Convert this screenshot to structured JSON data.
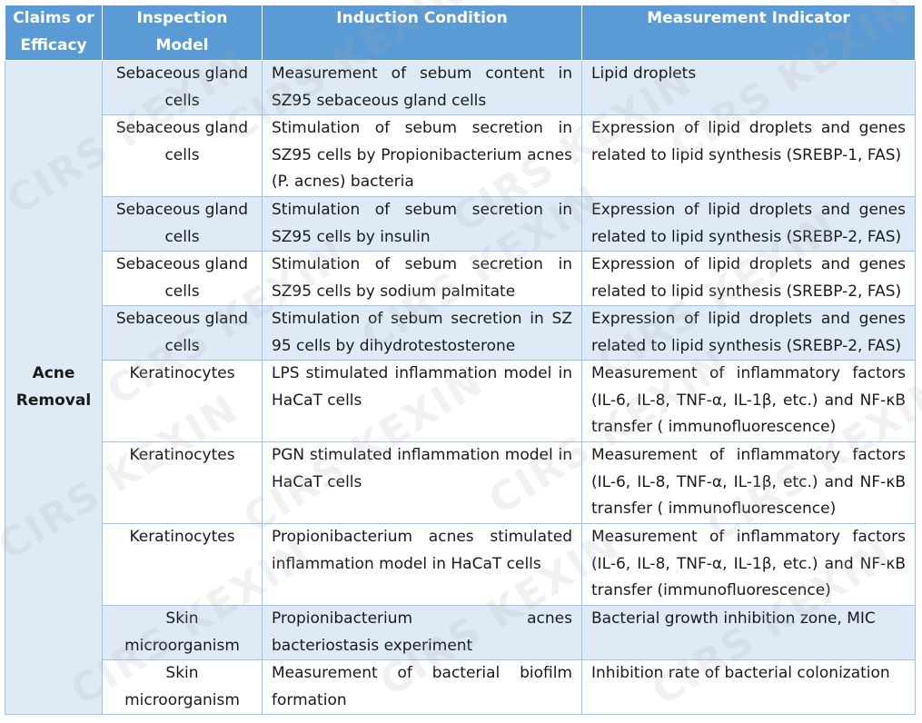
{
  "header": {
    "col1": "Claims or Efficacy",
    "col2": "Inspection Model",
    "col3": "Induction Condition",
    "col4": "Measurement Indicator"
  },
  "claim": "Acne Removal",
  "watermark": "CIRS KEXIN",
  "rows": [
    {
      "model": "Sebaceous gland cells",
      "condition": "Measurement of sebum content in SZ95 sebaceous gland cells",
      "indicator": "Lipid droplets"
    },
    {
      "model": "Sebaceous gland cells",
      "condition": "Stimulation of sebum secretion in SZ95 cells by Propionibacterium acnes (P. acnes) bacteria",
      "indicator": "Expression of lipid droplets and genes related to lipid synthesis (SREBP-1, FAS)"
    },
    {
      "model": "Sebaceous gland cells",
      "condition": "Stimulation of sebum secretion in SZ95 cells by insulin",
      "indicator": "Expression of lipid droplets and genes related to lipid synthesis (SREBP-2, FAS)"
    },
    {
      "model": "Sebaceous gland cells",
      "condition": "Stimulation of sebum secretion in SZ95 cells by sodium palmitate",
      "indicator": "Expression of lipid droplets and genes related to lipid synthesis (SREBP-2, FAS)"
    },
    {
      "model": "Sebaceous gland cells",
      "condition": "Stimulation of sebum secretion in SZ 95 cells by dihydrotestosterone",
      "indicator": "Expression of lipid droplets and genes related to lipid synthesis (SREBP-2, FAS)"
    },
    {
      "model": "Keratinocytes",
      "condition": "LPS stimulated inflammation model in HaCaT cells",
      "indicator": "Measurement of inflammatory factors (IL-6, IL-8, TNF-α, IL-1β, etc.) and NF-κB transfer ( immunofluorescence)"
    },
    {
      "model": "Keratinocytes",
      "condition": "PGN stimulated inflammation model in HaCaT cells",
      "indicator": "Measurement of inflammatory factors (IL-6, IL-8, TNF-α, IL-1β, etc.) and NF-κB transfer ( immunofluorescence)"
    },
    {
      "model": "Keratinocytes",
      "condition": "Propionibacterium acnes stimulated inflammation model in HaCaT cells",
      "indicator": "Measurement of inflammatory factors (IL-6, IL-8, TNF-α, IL-1β, etc.) and NF-κB transfer (immunofluorescence)"
    },
    {
      "model": "Skin microorganism",
      "condition": "Propionibacterium acnes bacteriostasis experiment",
      "indicator": "Bacterial growth inhibition zone, MIC"
    },
    {
      "model": "Skin microorganism",
      "condition": "Measurement of bacterial biofilm formation",
      "indicator": "Inhibition rate of bacterial colonization"
    }
  ]
}
